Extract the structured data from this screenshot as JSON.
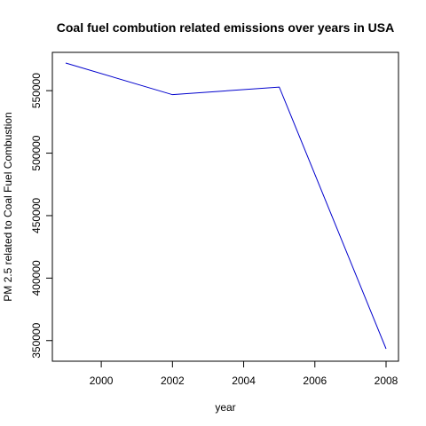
{
  "chart_data": {
    "type": "line",
    "title": "Coal fuel combution related emissions over years in USA",
    "xlabel": "year",
    "ylabel": "PM 2.5 related to Coal Fuel Combustion",
    "x": [
      1999,
      2002,
      2005,
      2008
    ],
    "series": [
      {
        "values": [
          572126,
          546789,
          552881,
          343432
        ],
        "color": "#0000cd"
      }
    ],
    "xlim": [
      1999,
      2008
    ],
    "ylim": [
      343432,
      572126
    ],
    "xticks": [
      2000,
      2002,
      2004,
      2006,
      2008
    ],
    "xtick_labels": [
      "2000",
      "2002",
      "2004",
      "2006",
      "2008"
    ],
    "yticks": [
      350000,
      400000,
      450000,
      500000,
      550000
    ],
    "ytick_labels": [
      "350000",
      "400000",
      "450000",
      "500000",
      "550000"
    ],
    "grid": false,
    "legend": "none"
  }
}
